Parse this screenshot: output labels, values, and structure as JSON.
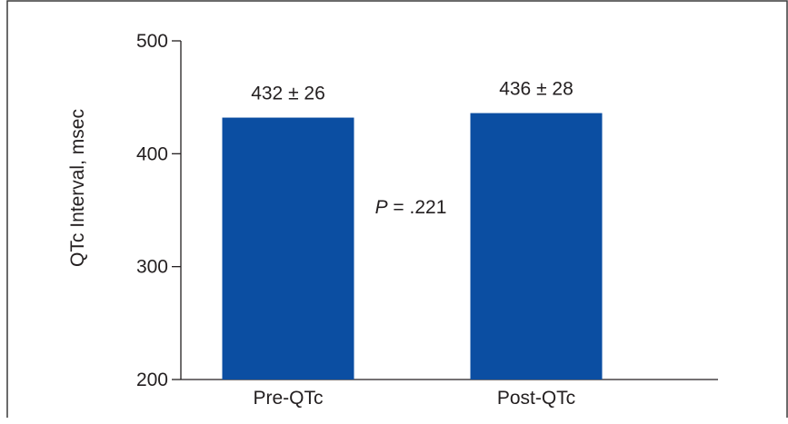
{
  "chart_data": {
    "type": "bar",
    "categories": [
      "Pre-QTc",
      "Post-QTc"
    ],
    "values": [
      432,
      436
    ],
    "data_labels": [
      "432 ± 26",
      "436 ± 28"
    ],
    "ylabel": "QTc Interval, msec",
    "ylim": [
      200,
      500
    ],
    "yticks": [
      200,
      300,
      400,
      500
    ],
    "ytick_labels": [
      "200",
      "300",
      "400",
      "500"
    ],
    "annotation": {
      "p_symbol": "P",
      "p_rest": " = .221"
    },
    "grid": false,
    "legend": "none",
    "colors": {
      "bar": "#0b4ea2",
      "axis": "#231f20",
      "frame": "#3a3a3a"
    }
  }
}
